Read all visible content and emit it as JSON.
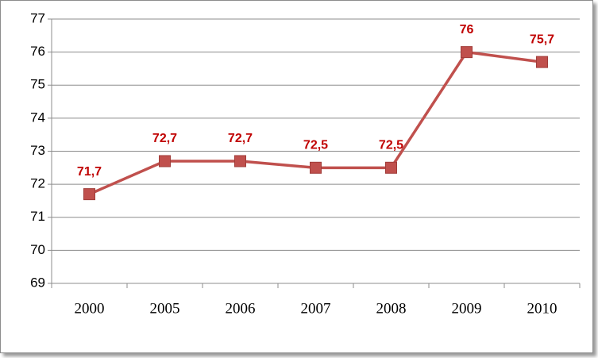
{
  "chart_data": {
    "type": "line",
    "categories": [
      "2000",
      "2005",
      "2006",
      "2007",
      "2008",
      "2009",
      "2010"
    ],
    "series": [
      {
        "color": "#c0504d",
        "values": [
          71.7,
          72.7,
          72.7,
          72.5,
          72.5,
          76,
          75.7
        ],
        "value_labels": [
          "71,7",
          "72,7",
          "72,7",
          "72,5",
          "72,5",
          "76",
          "75,7"
        ]
      }
    ],
    "ylim": [
      69,
      77
    ],
    "yticks": [
      69,
      70,
      71,
      72,
      73,
      74,
      75,
      76,
      77
    ],
    "grid": true,
    "label_color": "#c00000"
  }
}
